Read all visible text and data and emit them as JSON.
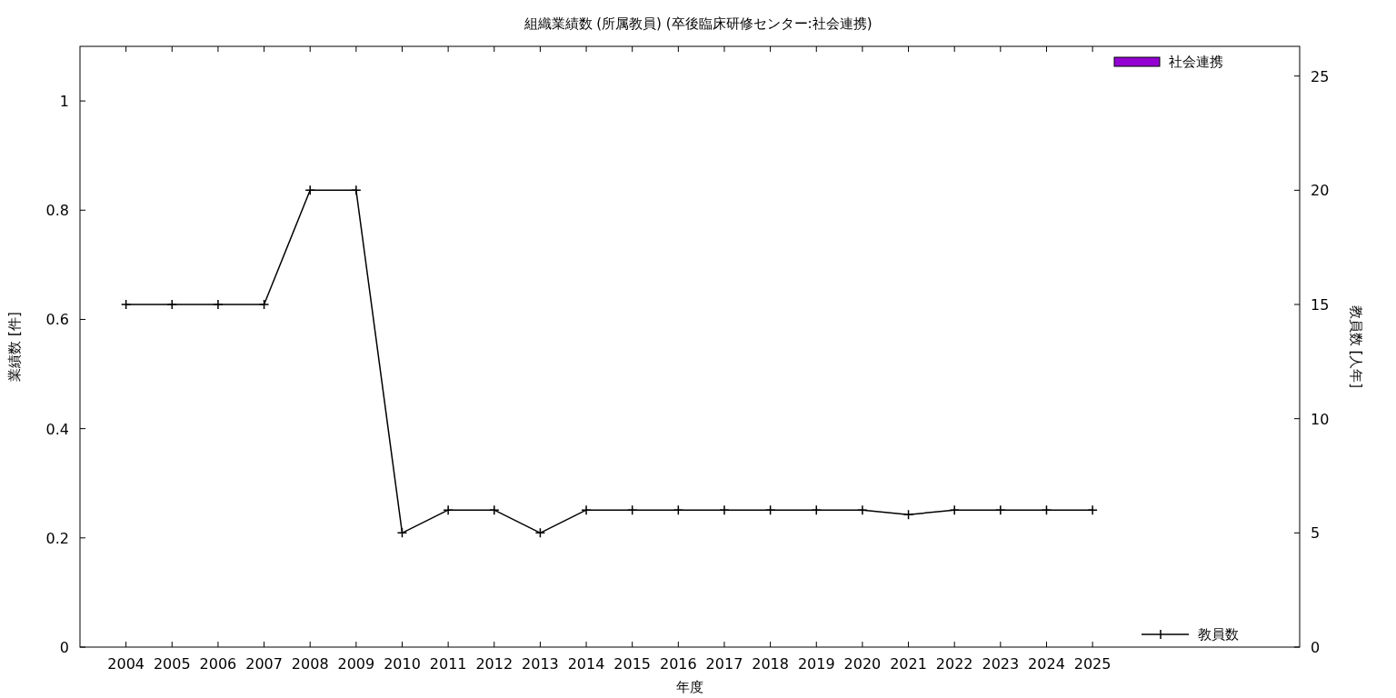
{
  "chart_data": {
    "type": "bar",
    "title": "組織業績数 (所属教員) (卒後臨床研修センター:社会連携)",
    "xlabel": "年度",
    "ylabel": "業績数 [件]",
    "y2label": "教員数 [人年]",
    "x": [
      2004,
      2005,
      2006,
      2007,
      2008,
      2009,
      2010,
      2011,
      2012,
      2013,
      2014,
      2015,
      2016,
      2017,
      2018,
      2019,
      2020,
      2021,
      2022,
      2023,
      2024,
      2025
    ],
    "xlim": [
      2003,
      2029.5
    ],
    "xticks": [
      2004,
      2005,
      2006,
      2007,
      2008,
      2009,
      2010,
      2011,
      2012,
      2013,
      2014,
      2015,
      2016,
      2017,
      2018,
      2019,
      2020,
      2021,
      2022,
      2023,
      2024,
      2025
    ],
    "ylim": [
      0,
      1.1
    ],
    "yticks": [
      0,
      0.2,
      0.4,
      0.6,
      0.8,
      1
    ],
    "y2lim": [
      0,
      26.3
    ],
    "y2ticks": [
      0,
      5,
      10,
      15,
      20,
      25
    ],
    "series": [
      {
        "name": "社会連携",
        "color": "#9400d3",
        "values": [
          0,
          0,
          0,
          0,
          0,
          0,
          0,
          0,
          0,
          0,
          0,
          0,
          0,
          0,
          0,
          0,
          0,
          0,
          0,
          0,
          0,
          0
        ]
      },
      {
        "name": "教員数",
        "type": "line",
        "axis": "y2",
        "color": "#000000",
        "marker": "cross",
        "line_style": "solid",
        "values": [
          15,
          15,
          15,
          15,
          20,
          20,
          5,
          6,
          6,
          5,
          6,
          6,
          6,
          6,
          6,
          6,
          6,
          5.8,
          6,
          6,
          6,
          6
        ]
      }
    ],
    "legend": "right",
    "grid": false
  }
}
